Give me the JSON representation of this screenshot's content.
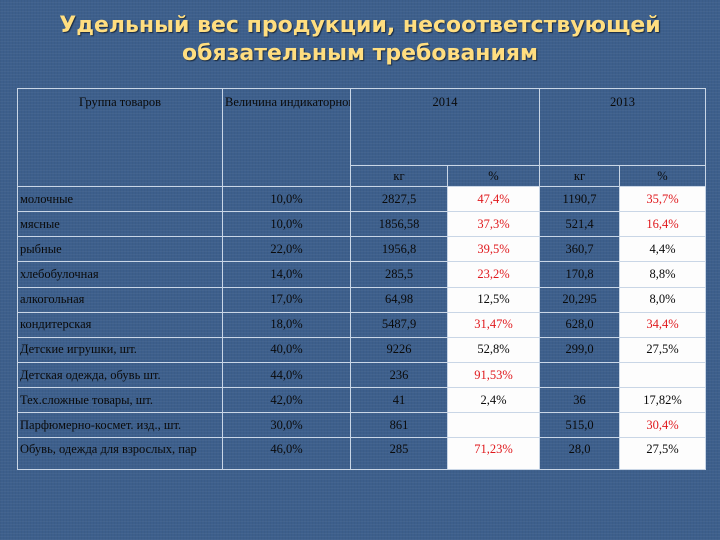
{
  "title": {
    "line1": "Удельный вес продукции, несоответствующей",
    "line2": "обязательным требованиям"
  },
  "table": {
    "header": {
      "group": "Группа товаров",
      "indicator": "Величина индикаторного показателя, % забраковки",
      "year2014": "2014",
      "year2013": "2013",
      "kg": "кг",
      "pct": "%"
    },
    "rows": [
      {
        "group": "молочные",
        "indicator": "10,0%",
        "kg2014": "2827,5",
        "pct2014": "47,4%",
        "pct2014_red": true,
        "kg2013": "1190,7",
        "pct2013": "35,7%",
        "pct2013_red": true
      },
      {
        "group": "мясные",
        "indicator": "10,0%",
        "kg2014": "1856,58",
        "pct2014": "37,3%",
        "pct2014_red": true,
        "kg2013": "521,4",
        "pct2013": "16,4%",
        "pct2013_red": true
      },
      {
        "group": "рыбные",
        "indicator": "22,0%",
        "kg2014": "1956,8",
        "pct2014": "39,5%",
        "pct2014_red": true,
        "kg2013": "360,7",
        "pct2013": "4,4%",
        "pct2013_red": false
      },
      {
        "group": "хлебобулочная",
        "indicator": "14,0%",
        "kg2014": "285,5",
        "pct2014": "23,2%",
        "pct2014_red": true,
        "kg2013": "170,8",
        "pct2013": "8,8%",
        "pct2013_red": false
      },
      {
        "group": "алкогольная",
        "indicator": "17,0%",
        "kg2014": "64,98",
        "pct2014": "12,5%",
        "pct2014_red": false,
        "kg2013": "20,295",
        "pct2013": "8,0%",
        "pct2013_red": false
      },
      {
        "group": "кондитерская",
        "indicator": "18,0%",
        "kg2014": "5487,9",
        "pct2014": "31,47%",
        "pct2014_red": true,
        "kg2013": "628,0",
        "pct2013": "34,4%",
        "pct2013_red": true
      },
      {
        "group": "Детские игрушки, шт.",
        "indicator": "40,0%",
        "kg2014": "9226",
        "pct2014": "52,8%",
        "pct2014_red": false,
        "kg2013": "299,0",
        "pct2013": "27,5%",
        "pct2013_red": false
      },
      {
        "group": "Детская одежда, обувь шт.",
        "indicator": "44,0%",
        "kg2014": "236",
        "pct2014": "91,53%",
        "pct2014_red": true,
        "kg2013": "",
        "pct2013": "",
        "pct2013_red": false
      },
      {
        "group": "Тех.сложные товары, шт.",
        "indicator": "42,0%",
        "kg2014": "41",
        "pct2014": "2,4%",
        "pct2014_red": false,
        "kg2013": "36",
        "pct2013": "17,82%",
        "pct2013_red": false
      },
      {
        "group": "Парфюмерно-космет. изд., шт.",
        "indicator": "30,0%",
        "kg2014": "861",
        "pct2014": "",
        "pct2014_red": false,
        "kg2013": "515,0",
        "pct2013": "30,4%",
        "pct2013_red": true
      },
      {
        "group": "Обувь, одежда для взрослых, пар",
        "indicator": "46,0%",
        "kg2014": "285",
        "pct2014": "71,23%",
        "pct2014_red": true,
        "kg2013": "28,0",
        "pct2013": "27,5%",
        "pct2013_red": false
      }
    ]
  }
}
